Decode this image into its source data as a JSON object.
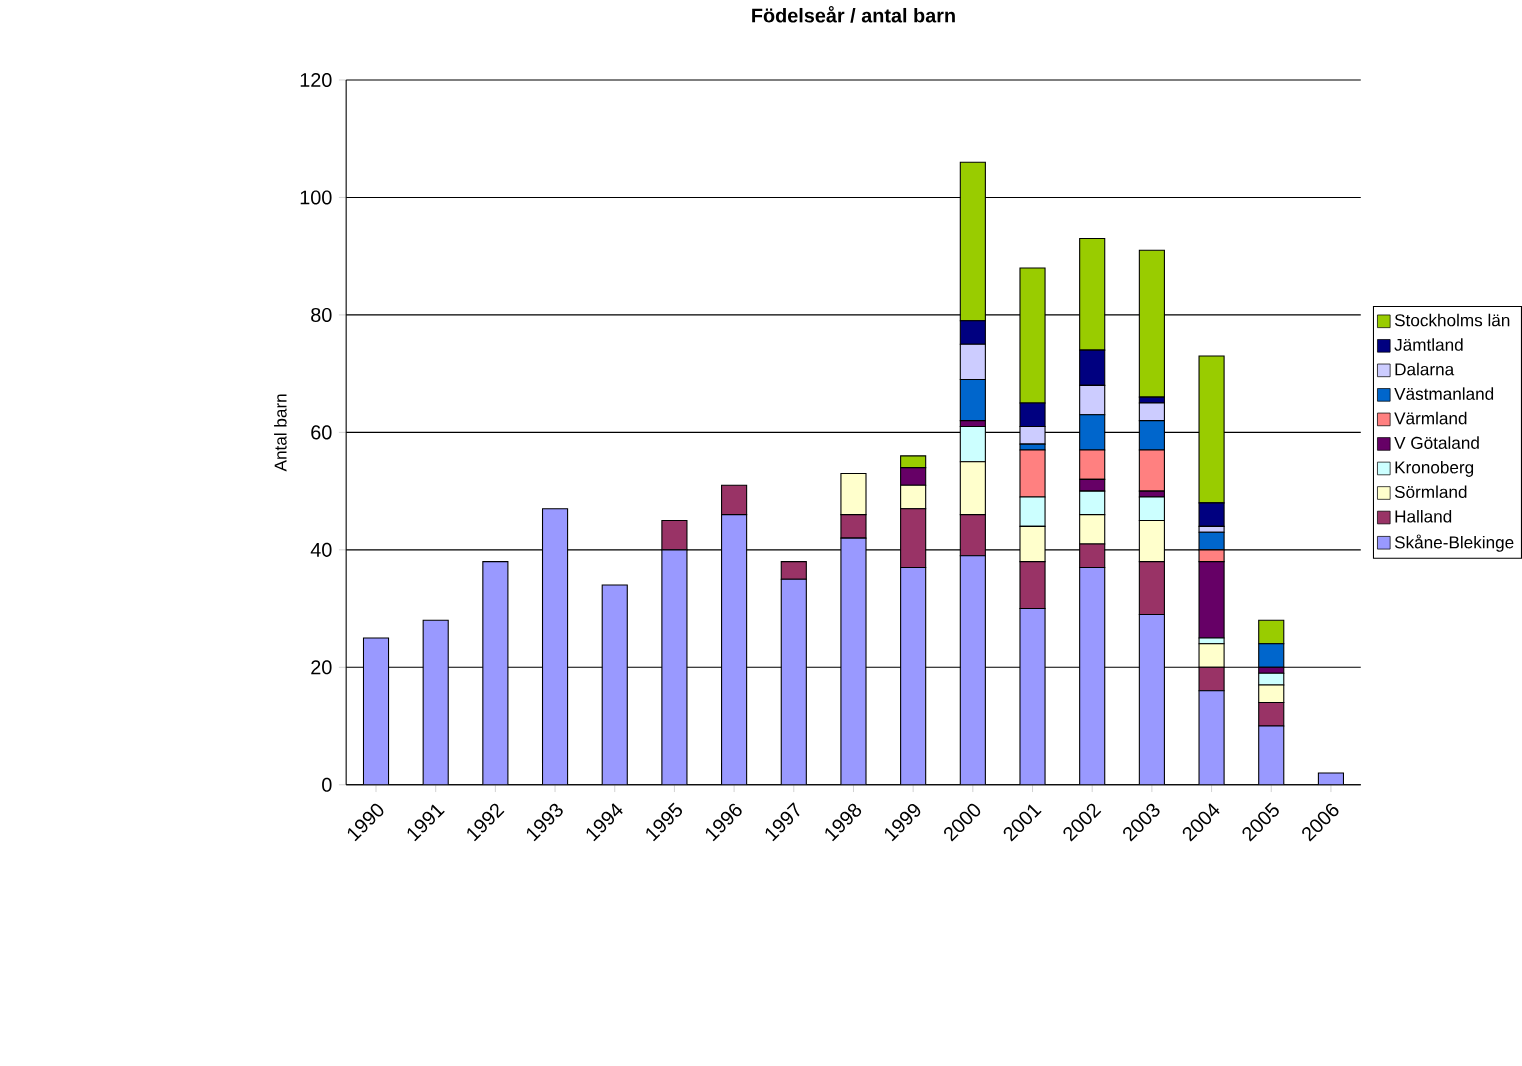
{
  "chart_data": {
    "type": "bar",
    "title": "Födelseår / antal barn",
    "ylabel": "Antal barn",
    "categories": [
      "1990",
      "1991",
      "1992",
      "1993",
      "1994",
      "1995",
      "1996",
      "1997",
      "1998",
      "1999",
      "2000",
      "2001",
      "2002",
      "2003",
      "2004",
      "2005",
      "2006"
    ],
    "stacked": true,
    "ylim": [
      0,
      120
    ],
    "yticks": [
      0,
      20,
      40,
      60,
      80,
      100,
      120
    ],
    "grid": "y",
    "legend": "right",
    "series": [
      {
        "name": "Skåne-Blekinge",
        "color": "#9999ff",
        "values": [
          25,
          28,
          38,
          47,
          34,
          40,
          46,
          35,
          42,
          37,
          39,
          30,
          37,
          29,
          16,
          10,
          2
        ]
      },
      {
        "name": "Halland",
        "color": "#993366",
        "values": [
          0,
          0,
          0,
          0,
          0,
          5,
          5,
          3,
          4,
          10,
          7,
          8,
          4,
          9,
          4,
          4,
          0
        ]
      },
      {
        "name": "Sörmland",
        "color": "#ffffcc",
        "values": [
          0,
          0,
          0,
          0,
          0,
          0,
          0,
          0,
          7,
          4,
          9,
          6,
          5,
          7,
          4,
          3,
          0
        ]
      },
      {
        "name": "Kronoberg",
        "color": "#ccffff",
        "values": [
          0,
          0,
          0,
          0,
          0,
          0,
          0,
          0,
          0,
          0,
          6,
          5,
          4,
          4,
          1,
          2,
          0
        ]
      },
      {
        "name": "V Götaland",
        "color": "#660066",
        "values": [
          0,
          0,
          0,
          0,
          0,
          0,
          0,
          0,
          0,
          3,
          1,
          0,
          2,
          1,
          13,
          1,
          0
        ]
      },
      {
        "name": "Värmland",
        "color": "#ff8080",
        "values": [
          0,
          0,
          0,
          0,
          0,
          0,
          0,
          0,
          0,
          0,
          0,
          8,
          5,
          7,
          2,
          0,
          0
        ]
      },
      {
        "name": "Västmanland",
        "color": "#0066cc",
        "values": [
          0,
          0,
          0,
          0,
          0,
          0,
          0,
          0,
          0,
          0,
          7,
          1,
          6,
          5,
          3,
          4,
          0
        ]
      },
      {
        "name": "Dalarna",
        "color": "#ccccff",
        "values": [
          0,
          0,
          0,
          0,
          0,
          0,
          0,
          0,
          0,
          0,
          6,
          3,
          5,
          3,
          1,
          0,
          0
        ]
      },
      {
        "name": "Jämtland",
        "color": "#000080",
        "values": [
          0,
          0,
          0,
          0,
          0,
          0,
          0,
          0,
          0,
          0,
          4,
          4,
          6,
          1,
          4,
          0,
          0
        ]
      },
      {
        "name": "Stockholms län",
        "color": "#99cc00",
        "values": [
          0,
          0,
          0,
          0,
          0,
          0,
          0,
          0,
          0,
          2,
          27,
          23,
          19,
          25,
          25,
          4,
          0
        ]
      }
    ]
  }
}
